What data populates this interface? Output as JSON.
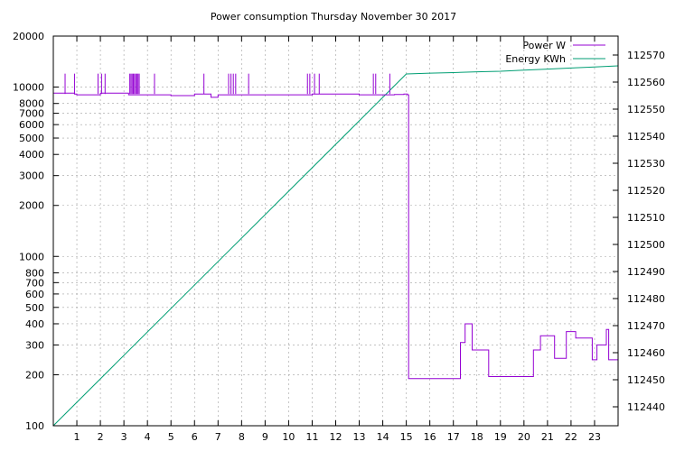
{
  "chart_data": {
    "type": "line",
    "title": "Power consumption Thursday November 30 2017",
    "x_ticks": [
      1,
      2,
      3,
      4,
      5,
      6,
      7,
      8,
      9,
      10,
      11,
      12,
      13,
      14,
      15,
      16,
      17,
      18,
      19,
      20,
      21,
      22,
      23
    ],
    "xlim": [
      0,
      24
    ],
    "y_left": {
      "scale": "log",
      "ylim": [
        100,
        20000
      ],
      "ticks": [
        100,
        200,
        300,
        400,
        500,
        600,
        700,
        800,
        1000,
        2000,
        3000,
        4000,
        5000,
        6000,
        7000,
        8000,
        10000,
        20000
      ]
    },
    "y_right": {
      "scale": "linear",
      "ylim": [
        112433,
        112577
      ],
      "ticks": [
        112440,
        112450,
        112460,
        112470,
        112480,
        112490,
        112500,
        112510,
        112520,
        112530,
        112540,
        112550,
        112560,
        112570
      ]
    },
    "grid": true,
    "legend": "top-right",
    "series": [
      {
        "name": "Power W",
        "axis": "left",
        "color": "#9400d3",
        "x": [
          0,
          0.5,
          0.9,
          1,
          1.9,
          2,
          3,
          3.2,
          4,
          5,
          6,
          6.7,
          7,
          8,
          9,
          10,
          11,
          12,
          13,
          14,
          14.5,
          14.9,
          15.05,
          15.1,
          17.2,
          17.3,
          17.5,
          17.8,
          18.3,
          18.5,
          20,
          20.4,
          20.7,
          21.3,
          21.8,
          22.2,
          22.4,
          22.9,
          23.1,
          23.5,
          23.6,
          24
        ],
        "y": [
          9200,
          9200,
          9100,
          9000,
          9000,
          9200,
          9200,
          9000,
          9000,
          8900,
          9100,
          8700,
          9000,
          9000,
          9000,
          9000,
          9100,
          9100,
          9000,
          9000,
          9050,
          9100,
          9000,
          190,
          190,
          310,
          400,
          280,
          280,
          195,
          195,
          280,
          340,
          250,
          360,
          330,
          330,
          245,
          300,
          370,
          245,
          245
        ]
      },
      {
        "name": "Energy KWh",
        "axis": "right",
        "color": "#009e73",
        "x": [
          0,
          15,
          16,
          17,
          18,
          19,
          20,
          21,
          22,
          23,
          24
        ],
        "y": [
          112433,
          112563,
          112563.3,
          112563.5,
          112563.8,
          112564,
          112564.4,
          112564.8,
          112565.2,
          112565.6,
          112566
        ]
      }
    ],
    "spikes": {
      "x": [
        0.5,
        0.9,
        1.9,
        2.05,
        2.2,
        3.25,
        3.3,
        3.35,
        3.4,
        3.45,
        3.5,
        3.55,
        3.6,
        3.65,
        4.3,
        6.4,
        7.45,
        7.55,
        7.65,
        7.75,
        8.3,
        10.8,
        10.9,
        11.1,
        11.3,
        13.6,
        13.7,
        14.3
      ],
      "top": 12000,
      "base": 9100
    }
  }
}
